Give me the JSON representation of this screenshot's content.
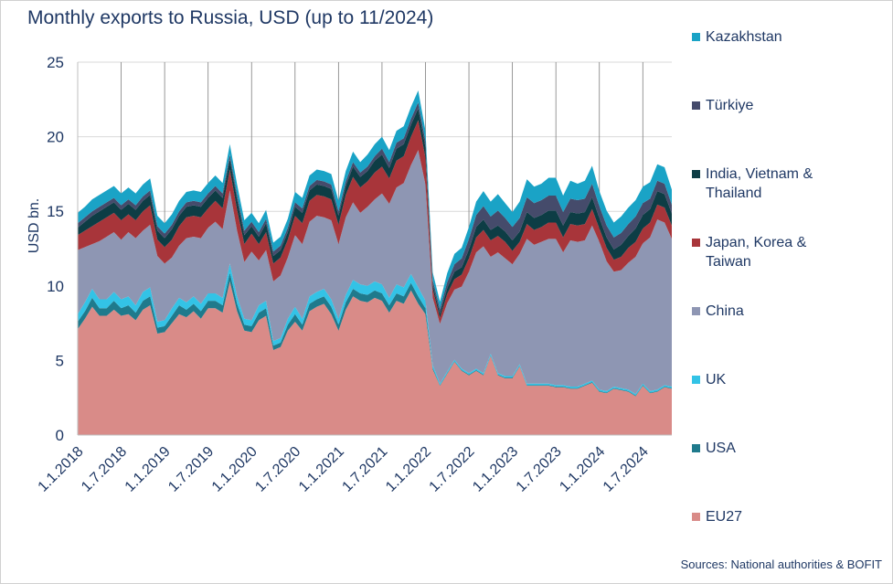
{
  "chart_data": {
    "type": "area",
    "title": "Monthly exports to Russia, USD (up to 11/2024)",
    "ylabel": "USD bn.",
    "ylim": [
      0,
      25
    ],
    "yticks": [
      0,
      5,
      10,
      15,
      20,
      25
    ],
    "x_tick_labels": [
      "1.1.2018",
      "1.7.2018",
      "1.1.2019",
      "1.7.2019",
      "1.1.2020",
      "1.7.2020",
      "1.1.2021",
      "1.7.2021",
      "1.1.2022",
      "1.7.2022",
      "1.1.2023",
      "1.7.2023",
      "1.1.2024",
      "1.7.2024"
    ],
    "x": [
      "2018-01",
      "2018-02",
      "2018-03",
      "2018-04",
      "2018-05",
      "2018-06",
      "2018-07",
      "2018-08",
      "2018-09",
      "2018-10",
      "2018-11",
      "2018-12",
      "2019-01",
      "2019-02",
      "2019-03",
      "2019-04",
      "2019-05",
      "2019-06",
      "2019-07",
      "2019-08",
      "2019-09",
      "2019-10",
      "2019-11",
      "2019-12",
      "2020-01",
      "2020-02",
      "2020-03",
      "2020-04",
      "2020-05",
      "2020-06",
      "2020-07",
      "2020-08",
      "2020-09",
      "2020-10",
      "2020-11",
      "2020-12",
      "2021-01",
      "2021-02",
      "2021-03",
      "2021-04",
      "2021-05",
      "2021-06",
      "2021-07",
      "2021-08",
      "2021-09",
      "2021-10",
      "2021-11",
      "2021-12",
      "2022-01",
      "2022-02",
      "2022-03",
      "2022-04",
      "2022-05",
      "2022-06",
      "2022-07",
      "2022-08",
      "2022-09",
      "2022-10",
      "2022-11",
      "2022-12",
      "2023-01",
      "2023-02",
      "2023-03",
      "2023-04",
      "2023-05",
      "2023-06",
      "2023-07",
      "2023-08",
      "2023-09",
      "2023-10",
      "2023-11",
      "2023-12",
      "2024-01",
      "2024-02",
      "2024-03",
      "2024-04",
      "2024-05",
      "2024-06",
      "2024-07",
      "2024-08",
      "2024-09",
      "2024-10",
      "2024-11"
    ],
    "series": [
      {
        "name": "EU27",
        "color": "#d98b88",
        "values": [
          7.1,
          7.8,
          8.6,
          8.0,
          8.0,
          8.4,
          8.0,
          8.1,
          7.7,
          8.4,
          8.7,
          6.8,
          6.9,
          7.5,
          8.1,
          7.9,
          8.3,
          7.8,
          8.5,
          8.5,
          8.2,
          10.3,
          8.3,
          7.0,
          6.9,
          7.7,
          8.0,
          5.7,
          5.9,
          7.0,
          7.6,
          7.0,
          8.3,
          8.6,
          8.8,
          8.1,
          7.0,
          8.4,
          9.3,
          9.0,
          8.9,
          9.2,
          9.0,
          8.2,
          9.0,
          8.8,
          9.7,
          8.8,
          8.1,
          4.4,
          3.3,
          4.1,
          4.9,
          4.3,
          4.0,
          4.3,
          4.0,
          5.3,
          4.0,
          3.8,
          3.8,
          4.6,
          3.3,
          3.3,
          3.3,
          3.3,
          3.2,
          3.2,
          3.1,
          3.1,
          3.3,
          3.5,
          2.9,
          2.8,
          3.1,
          3.0,
          2.9,
          2.6,
          3.3,
          2.8,
          2.9,
          3.2,
          3.1
        ]
      },
      {
        "name": "USA",
        "color": "#1f7a8c",
        "values": [
          0.5,
          0.5,
          0.6,
          0.5,
          0.5,
          0.6,
          0.5,
          0.6,
          0.5,
          0.6,
          0.6,
          0.4,
          0.4,
          0.5,
          0.6,
          0.5,
          0.5,
          0.5,
          0.5,
          0.5,
          0.5,
          0.6,
          0.5,
          0.4,
          0.4,
          0.5,
          0.5,
          0.3,
          0.3,
          0.4,
          0.5,
          0.4,
          0.5,
          0.5,
          0.5,
          0.5,
          0.4,
          0.5,
          0.5,
          0.5,
          0.5,
          0.5,
          0.5,
          0.5,
          0.5,
          0.5,
          0.5,
          0.5,
          0.4,
          0.1,
          0.05,
          0.05,
          0.05,
          0.05,
          0.05,
          0.05,
          0.05,
          0.05,
          0.05,
          0.05,
          0.05,
          0.05,
          0.05,
          0.05,
          0.05,
          0.05,
          0.05,
          0.05,
          0.05,
          0.05,
          0.05,
          0.05,
          0.05,
          0.05,
          0.05,
          0.05,
          0.05,
          0.05,
          0.05,
          0.05,
          0.05,
          0.05,
          0.05
        ]
      },
      {
        "name": "UK",
        "color": "#33c3e6",
        "values": [
          0.5,
          0.6,
          0.6,
          0.6,
          0.6,
          0.6,
          0.6,
          0.6,
          0.5,
          0.6,
          0.6,
          0.4,
          0.4,
          0.5,
          0.5,
          0.5,
          0.5,
          0.5,
          0.5,
          0.5,
          0.5,
          0.6,
          0.5,
          0.4,
          0.4,
          0.5,
          0.5,
          0.3,
          0.3,
          0.4,
          0.5,
          0.4,
          0.5,
          0.5,
          0.5,
          0.5,
          0.4,
          0.5,
          0.6,
          0.6,
          0.6,
          0.6,
          0.6,
          0.5,
          0.6,
          0.6,
          0.6,
          0.6,
          0.5,
          0.2,
          0.1,
          0.1,
          0.1,
          0.1,
          0.1,
          0.1,
          0.1,
          0.1,
          0.1,
          0.1,
          0.1,
          0.1,
          0.1,
          0.1,
          0.1,
          0.1,
          0.1,
          0.1,
          0.1,
          0.1,
          0.1,
          0.1,
          0.1,
          0.1,
          0.1,
          0.1,
          0.1,
          0.1,
          0.1,
          0.1,
          0.1,
          0.1,
          0.1
        ]
      },
      {
        "name": "China",
        "color": "#8e96b3",
        "values": [
          4.3,
          3.7,
          3.0,
          3.9,
          4.2,
          4.0,
          4.0,
          4.3,
          4.5,
          4.1,
          4.2,
          4.4,
          3.8,
          3.4,
          3.5,
          4.3,
          4.0,
          4.4,
          4.4,
          4.8,
          4.6,
          4.9,
          4.4,
          3.8,
          4.6,
          3.0,
          3.4,
          4.0,
          4.2,
          4.1,
          4.8,
          5.0,
          5.0,
          5.1,
          4.8,
          5.3,
          5.0,
          5.2,
          5.2,
          4.8,
          5.3,
          5.5,
          6.1,
          6.3,
          6.5,
          7.0,
          7.3,
          9.2,
          7.8,
          4.5,
          4.0,
          4.6,
          4.7,
          5.5,
          6.8,
          7.8,
          8.5,
          6.5,
          8.1,
          7.9,
          7.5,
          7.4,
          9.7,
          9.3,
          9.5,
          9.7,
          9.8,
          8.9,
          9.8,
          9.7,
          9.6,
          10.4,
          9.9,
          8.7,
          7.7,
          7.9,
          8.5,
          9.2,
          9.4,
          10.3,
          11.4,
          10.9,
          9.9
        ]
      },
      {
        "name": "Japan, Korea & Taiwan",
        "color": "#a8353a",
        "values": [
          1.0,
          1.1,
          1.2,
          1.3,
          1.3,
          1.3,
          1.3,
          1.2,
          1.2,
          1.3,
          1.3,
          1.1,
          1.1,
          1.2,
          1.3,
          1.4,
          1.4,
          1.4,
          1.3,
          1.4,
          1.4,
          1.4,
          1.4,
          1.2,
          1.2,
          1.1,
          1.2,
          1.2,
          1.2,
          1.2,
          1.3,
          1.4,
          1.4,
          1.4,
          1.4,
          1.4,
          1.3,
          1.5,
          1.7,
          1.7,
          1.7,
          1.8,
          1.8,
          1.7,
          1.8,
          1.8,
          1.9,
          2.0,
          1.8,
          0.6,
          0.4,
          0.6,
          0.7,
          0.8,
          0.9,
          1.0,
          1.1,
          1.1,
          1.1,
          1.1,
          0.9,
          0.8,
          1.0,
          1.0,
          1.0,
          1.1,
          1.1,
          1.0,
          1.1,
          1.1,
          1.1,
          1.1,
          0.9,
          0.9,
          0.8,
          0.9,
          1.0,
          1.0,
          1.0,
          1.0,
          1.0,
          1.0,
          0.9
        ]
      },
      {
        "name": "India, Vietnam & Thailand",
        "color": "#0d3d45",
        "values": [
          0.5,
          0.6,
          0.7,
          0.7,
          0.7,
          0.7,
          0.7,
          0.7,
          0.7,
          0.7,
          0.7,
          0.6,
          0.6,
          0.7,
          0.7,
          0.7,
          0.7,
          0.7,
          0.7,
          0.7,
          0.7,
          0.7,
          0.7,
          0.6,
          0.5,
          0.5,
          0.6,
          0.5,
          0.5,
          0.5,
          0.6,
          0.7,
          0.7,
          0.7,
          0.7,
          0.7,
          0.6,
          0.6,
          0.7,
          0.7,
          0.7,
          0.8,
          0.8,
          0.7,
          0.8,
          0.8,
          0.8,
          0.8,
          0.7,
          0.3,
          0.3,
          0.4,
          0.5,
          0.5,
          0.6,
          0.7,
          0.7,
          0.7,
          0.7,
          0.7,
          0.7,
          0.7,
          0.8,
          0.8,
          0.8,
          0.8,
          0.8,
          0.8,
          0.8,
          0.8,
          0.8,
          0.8,
          0.7,
          0.7,
          0.7,
          0.8,
          0.8,
          0.9,
          0.9,
          0.9,
          0.9,
          0.9,
          0.8
        ]
      },
      {
        "name": "Türkiye",
        "color": "#454b6b",
        "values": [
          0.3,
          0.3,
          0.3,
          0.3,
          0.3,
          0.3,
          0.3,
          0.3,
          0.3,
          0.3,
          0.3,
          0.3,
          0.3,
          0.3,
          0.3,
          0.3,
          0.3,
          0.3,
          0.3,
          0.3,
          0.3,
          0.3,
          0.3,
          0.3,
          0.3,
          0.3,
          0.3,
          0.3,
          0.3,
          0.3,
          0.3,
          0.3,
          0.3,
          0.3,
          0.3,
          0.3,
          0.3,
          0.3,
          0.3,
          0.3,
          0.3,
          0.3,
          0.4,
          0.4,
          0.4,
          0.4,
          0.4,
          0.4,
          0.4,
          0.3,
          0.3,
          0.4,
          0.5,
          0.6,
          0.7,
          0.8,
          0.9,
          0.9,
          1.0,
          0.9,
          0.9,
          0.9,
          1.0,
          1.0,
          1.0,
          1.0,
          1.0,
          0.9,
          0.9,
          0.9,
          0.9,
          0.9,
          0.8,
          0.8,
          0.8,
          0.8,
          0.8,
          0.8,
          0.8,
          0.7,
          0.7,
          0.7,
          0.6
        ]
      },
      {
        "name": "Kazakhstan",
        "color": "#1aa3c6",
        "values": [
          0.7,
          0.7,
          0.8,
          0.8,
          0.8,
          0.8,
          0.8,
          0.8,
          0.8,
          0.8,
          0.8,
          0.7,
          0.7,
          0.7,
          0.7,
          0.7,
          0.7,
          0.7,
          0.7,
          0.7,
          0.7,
          0.7,
          0.7,
          0.7,
          0.6,
          0.6,
          0.6,
          0.6,
          0.6,
          0.6,
          0.7,
          0.7,
          0.7,
          0.7,
          0.7,
          0.7,
          0.7,
          0.7,
          0.7,
          0.7,
          0.8,
          0.8,
          0.8,
          0.8,
          0.8,
          0.8,
          0.8,
          0.8,
          0.7,
          0.5,
          0.5,
          0.6,
          0.7,
          0.7,
          0.8,
          0.9,
          1.0,
          1.0,
          1.1,
          1.0,
          1.0,
          1.1,
          1.2,
          1.1,
          1.1,
          1.2,
          1.2,
          1.1,
          1.2,
          1.1,
          1.2,
          1.2,
          1.0,
          1.0,
          1.0,
          1.1,
          1.1,
          1.1,
          1.1,
          1.1,
          1.1,
          1.1,
          1.0
        ]
      }
    ],
    "legend_order_top_to_bottom": [
      "Kazakhstan",
      "Türkiye",
      "India, Vietnam & Thailand",
      "Japan, Korea & Taiwan",
      "China",
      "UK",
      "USA",
      "EU27"
    ],
    "legend_position": "right",
    "grid": "horizontal gridlines and vertical lines at tick labels",
    "source": "Sources: National authorities & BOFIT"
  }
}
